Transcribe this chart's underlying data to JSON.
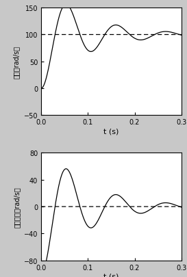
{
  "fig_width": 2.73,
  "fig_height": 4.06,
  "dpi": 100,
  "background_color": "#c8c8c8",
  "plot1": {
    "ylim": [
      -50,
      150
    ],
    "yticks": [
      -50,
      0,
      50,
      100,
      150
    ],
    "xlim": [
      0,
      0.3
    ],
    "xticks": [
      0,
      0.1,
      0.2,
      0.3
    ],
    "xlabel": "t (s)",
    "ylabel": "速度（rad/s）",
    "ref_value": 100,
    "solid_color": "#000000",
    "dashed_color": "#000000"
  },
  "plot2": {
    "ylim": [
      -80,
      80
    ],
    "yticks": [
      -80,
      -40,
      0,
      40,
      80
    ],
    "xlim": [
      0,
      0.3
    ],
    "xticks": [
      0,
      0.1,
      0.2,
      0.3
    ],
    "xlabel": "t (s)",
    "ylabel": "速度误差（rad/s）",
    "ref_value": 0,
    "solid_color": "#000000",
    "dashed_color": "#000000"
  }
}
